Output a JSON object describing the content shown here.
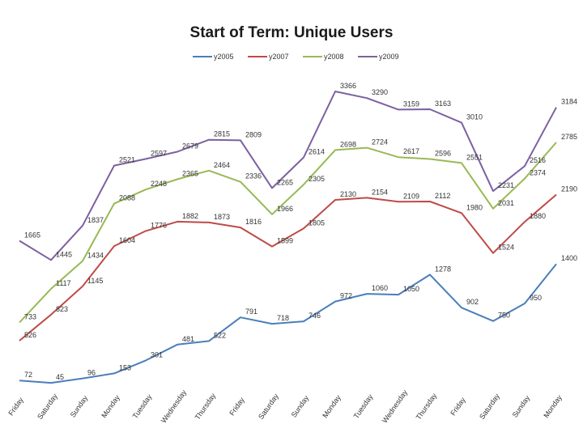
{
  "chart_data": {
    "type": "line",
    "title": "Start of Term: Unique Users",
    "xlabel": "",
    "ylabel": "",
    "ylim": [
      0,
      3500
    ],
    "grid": false,
    "legend_position": "top",
    "categories": [
      "Friday",
      "Saturday",
      "Sunday",
      "Monday",
      "Tuesday",
      "Wednesday",
      "Thursday",
      "Friday",
      "Saturday",
      "Sunday",
      "Monday",
      "Tuesday",
      "Wednesday",
      "Thursday",
      "Friday",
      "Saturday",
      "Sunday",
      "Monday"
    ],
    "series": [
      {
        "name": "y2005",
        "color": "#4a7ebb",
        "values": [
          72,
          45,
          96,
          153,
          301,
          481,
          522,
          791,
          718,
          746,
          972,
          1060,
          1050,
          1278,
          902,
          750,
          950,
          1400
        ]
      },
      {
        "name": "y2007",
        "color": "#be4b48",
        "values": [
          526,
          823,
          1145,
          1604,
          1776,
          1882,
          1873,
          1816,
          1599,
          1805,
          2130,
          2154,
          2109,
          2112,
          1980,
          1524,
          1880,
          2190
        ]
      },
      {
        "name": "y2008",
        "color": "#98b954",
        "values": [
          733,
          1117,
          1434,
          2088,
          2248,
          2365,
          2464,
          2336,
          1966,
          2305,
          2698,
          2724,
          2617,
          2596,
          2551,
          2031,
          2374,
          2785
        ]
      },
      {
        "name": "y2009",
        "color": "#7d60a0",
        "values": [
          1665,
          1445,
          1837,
          2521,
          2597,
          2679,
          2815,
          2809,
          2265,
          2614,
          3366,
          3290,
          3159,
          3163,
          3010,
          2231,
          2516,
          3184
        ]
      }
    ]
  }
}
